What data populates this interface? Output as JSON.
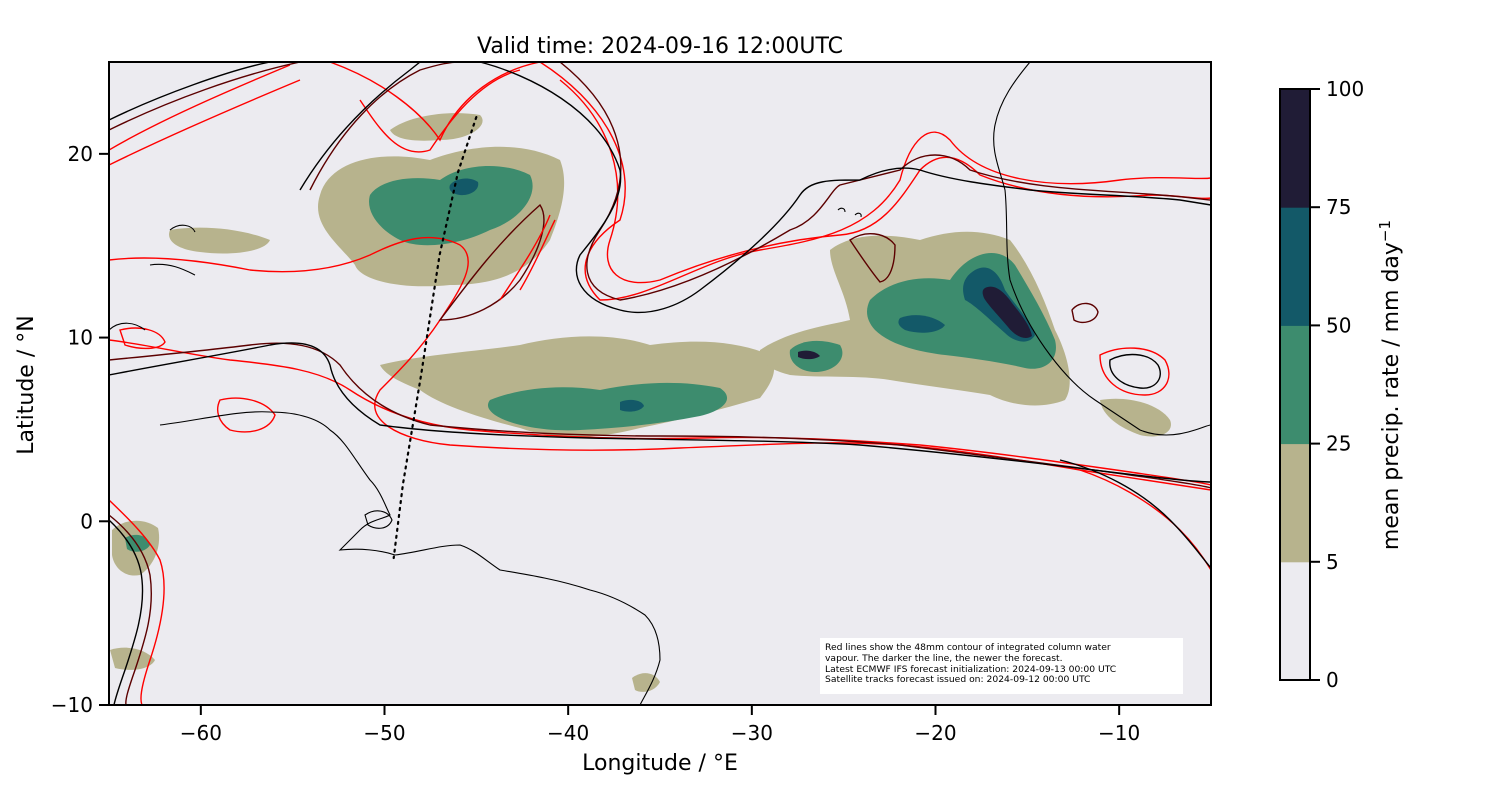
{
  "map": {
    "title": "Valid time: 2024-09-16 12:00UTC",
    "xlabel": "Longitude / °E",
    "ylabel": "Latitude / °N",
    "lon_range": [
      -65,
      -5
    ],
    "lat_range": [
      -10,
      25
    ],
    "x_ticks": [
      {
        "value": -60,
        "label": "−60"
      },
      {
        "value": -50,
        "label": "−50"
      },
      {
        "value": -40,
        "label": "−40"
      },
      {
        "value": -30,
        "label": "−30"
      },
      {
        "value": -20,
        "label": "−20"
      },
      {
        "value": -10,
        "label": "−10"
      }
    ],
    "y_ticks": [
      {
        "value": 20,
        "label": "20"
      },
      {
        "value": 10,
        "label": "10"
      },
      {
        "value": 0,
        "label": "0"
      },
      {
        "value": -10,
        "label": "−10"
      }
    ],
    "background_color": "#ecebf0",
    "precip_colors": [
      "#ecebf0",
      "#b7b38d",
      "#3d8c6e",
      "#135968",
      "#201c36"
    ],
    "contour_colors": [
      "#000000",
      "#5c0000",
      "#a00000",
      "#ff0000"
    ],
    "satellite_track": {
      "style": "dotted",
      "points": [
        [
          -45.0,
          22.0
        ],
        [
          -46.0,
          19.0
        ],
        [
          -47.0,
          14.5
        ],
        [
          -48.0,
          8.0
        ],
        [
          -49.0,
          2.0
        ],
        [
          -49.5,
          -2.0
        ]
      ]
    }
  },
  "colorbar": {
    "label": "mean precip. rate / mm day",
    "label_superscript": "−1",
    "levels": [
      0,
      5,
      25,
      50,
      75,
      100
    ],
    "tick_labels": [
      "0",
      "5",
      "25",
      "50",
      "75",
      "100"
    ]
  },
  "note": {
    "lines": [
      "Red lines show the 48mm contour of integrated column water",
      "vapour. The darker the line, the newer the forecast.",
      "Latest ECMWF IFS forecast initialization: 2024-09-13 00:00 UTC",
      "Satellite tracks forecast issued on: 2024-09-12 00:00 UTC"
    ]
  }
}
